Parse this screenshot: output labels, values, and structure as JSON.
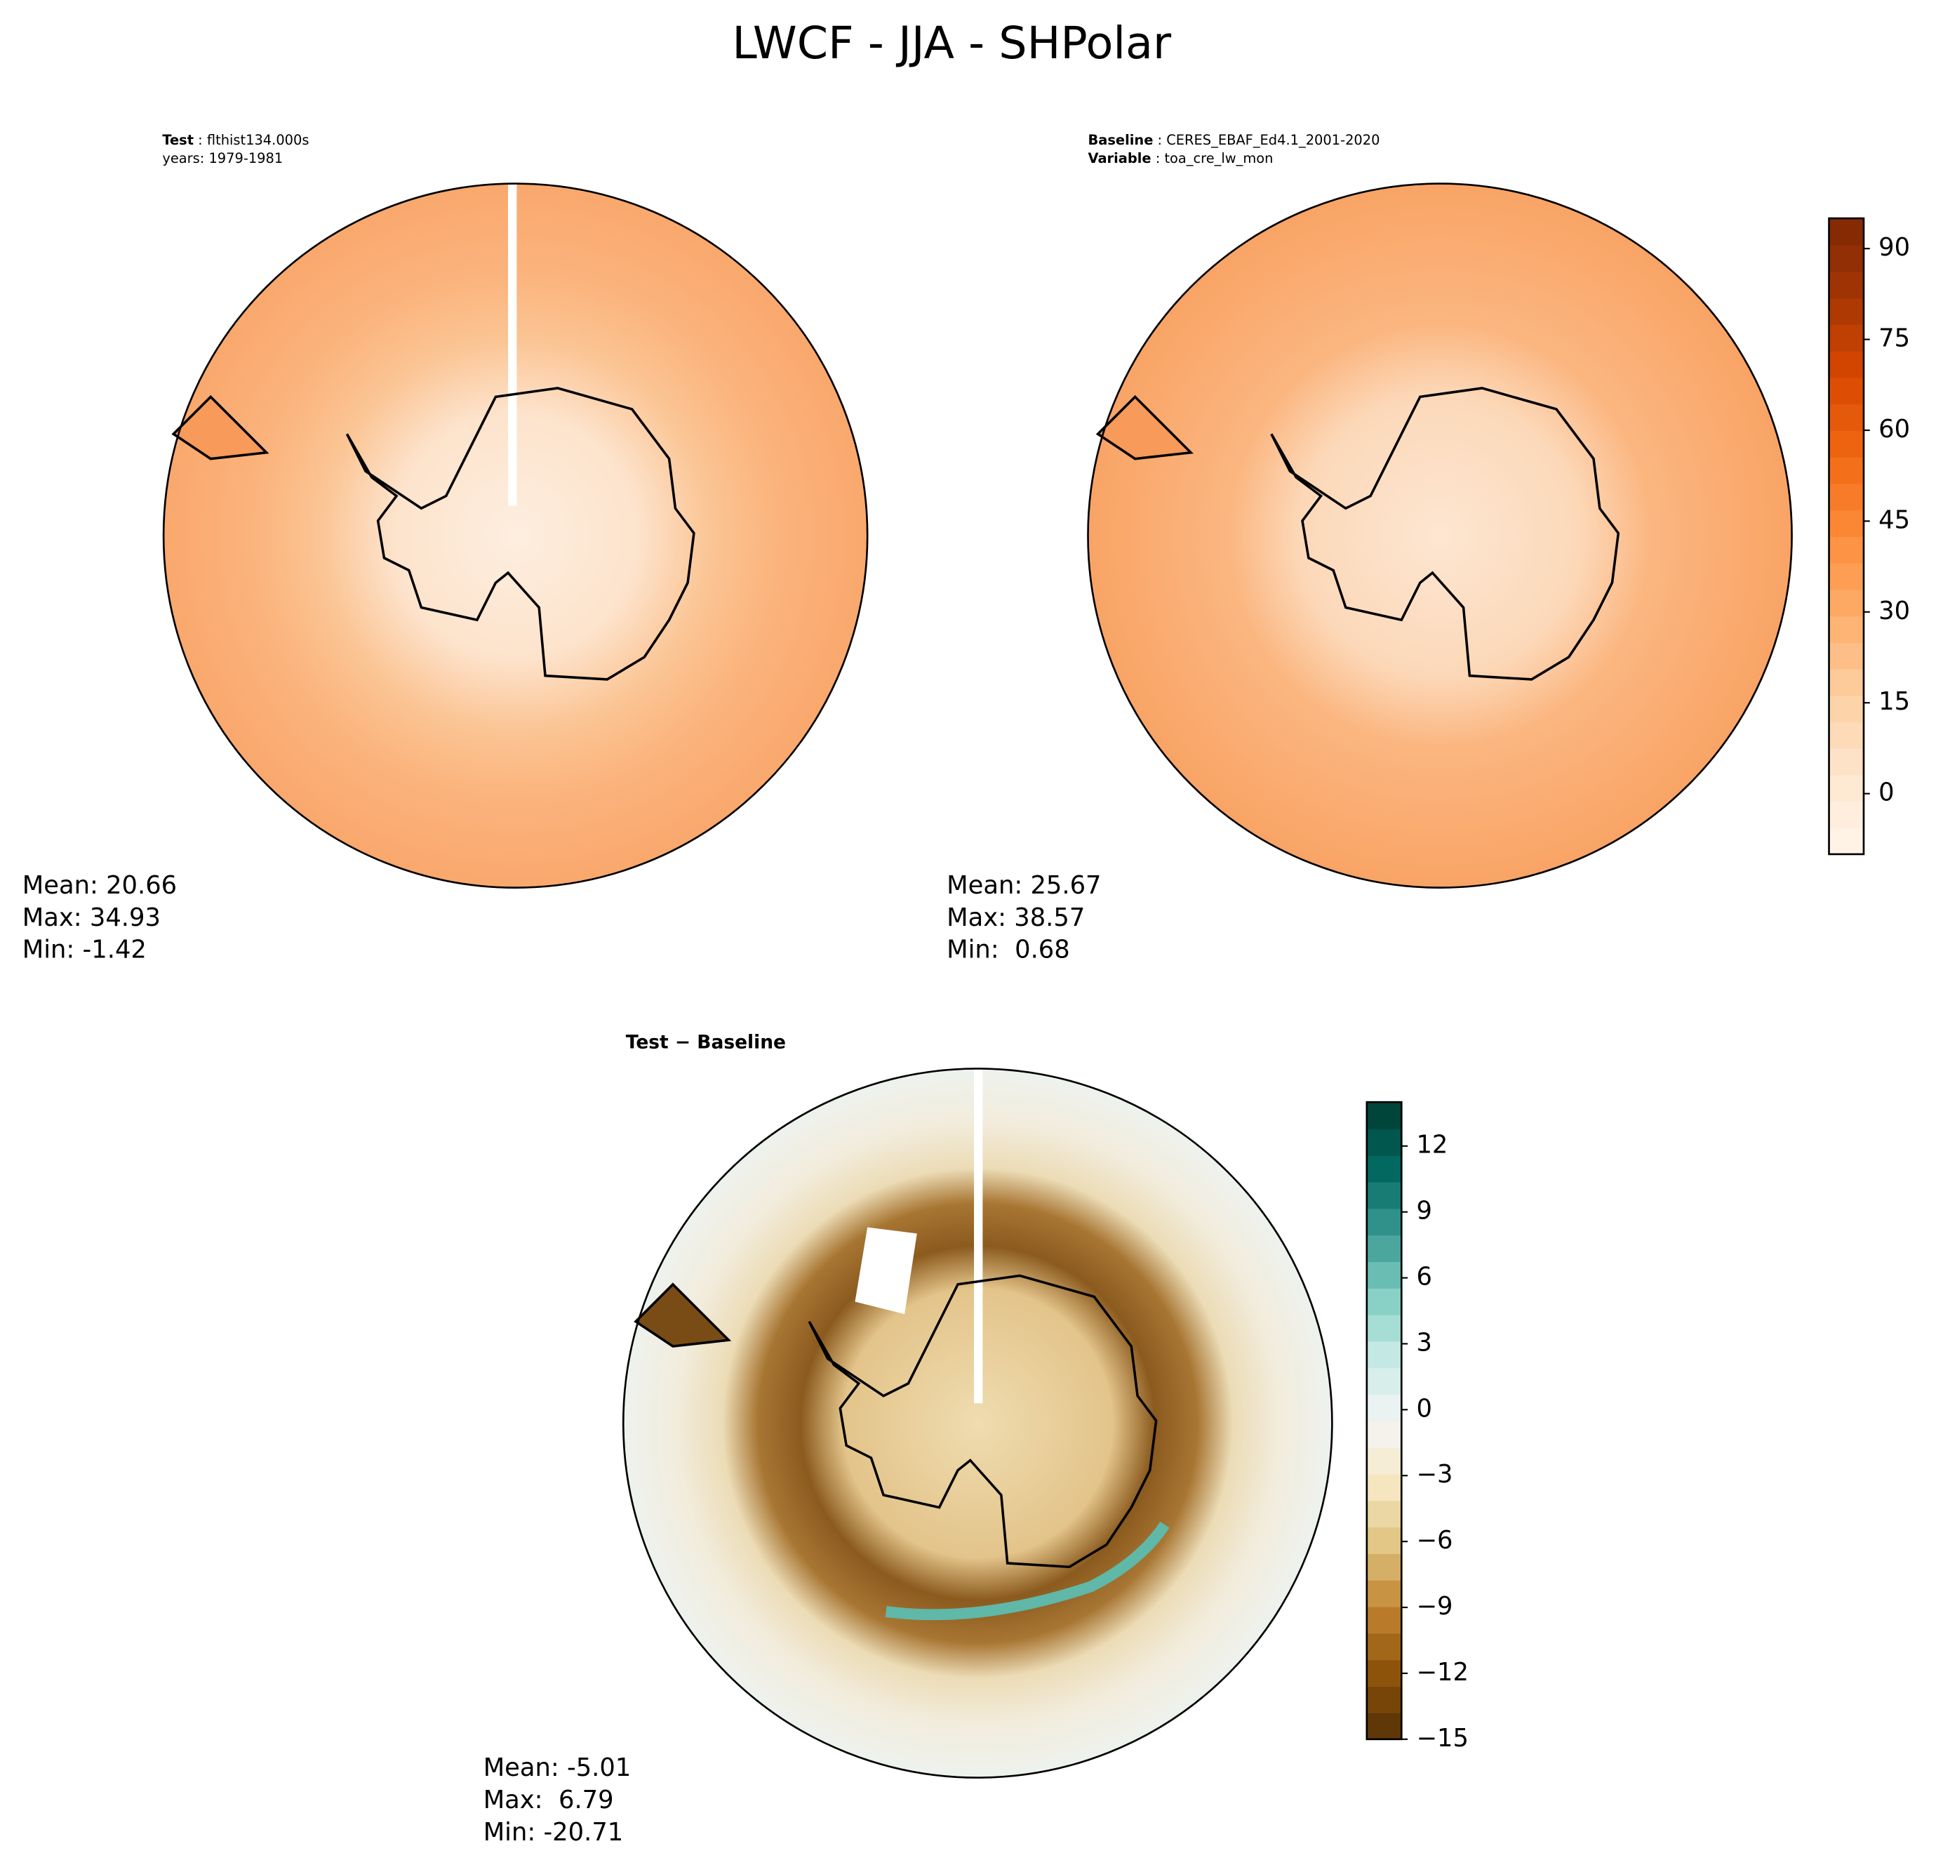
{
  "title": "LWCF - JJA - SHPolar",
  "panels": [
    {
      "header": [
        {
          "bold": "Test",
          "text": " : flthist134.000s"
        },
        {
          "text": "years: 1979-1981"
        }
      ],
      "stats": [
        "Mean: 20.66",
        "Max: 34.93",
        "Min: -1.42"
      ]
    },
    {
      "header": [
        {
          "bold": "Baseline",
          "text": " : CERES_EBAF_Ed4.1_2001-2020"
        },
        {
          "bold": "Variable",
          "text": " : toa_cre_lw_mon"
        }
      ],
      "stats": [
        "Mean: 25.67",
        "Max: 38.57",
        "Min:  0.68"
      ]
    },
    {
      "header": [
        {
          "bold": "Test − Baseline"
        }
      ],
      "stats": [
        "Mean: -5.01",
        "Max:  6.79",
        "Min: -20.71"
      ]
    }
  ],
  "colorbars": [
    {
      "lim": [
        -10,
        95
      ],
      "ticks": [
        0,
        15,
        30,
        45,
        60,
        75,
        90
      ],
      "colors": [
        "#fff5eb",
        "#fee6ce",
        "#fdd0a2",
        "#fdae6b",
        "#fd8d3c",
        "#f16913",
        "#d94801",
        "#a63603",
        "#7f2704"
      ]
    },
    {
      "lim": [
        -15,
        14
      ],
      "ticks": [
        {
          "value": -15,
          "label": "−15"
        },
        {
          "value": -12,
          "label": "−12"
        },
        {
          "value": -9,
          "label": "−9"
        },
        {
          "value": -6,
          "label": "−6"
        },
        {
          "value": -3,
          "label": "−3"
        },
        0,
        3,
        6,
        9,
        12
      ],
      "colors": [
        "#543005",
        "#8c510a",
        "#bf812d",
        "#dfc27d",
        "#f6e8c3",
        "#f5f5f5",
        "#c7eae5",
        "#80cdc1",
        "#35978f",
        "#01665e",
        "#003c30"
      ]
    }
  ]
}
